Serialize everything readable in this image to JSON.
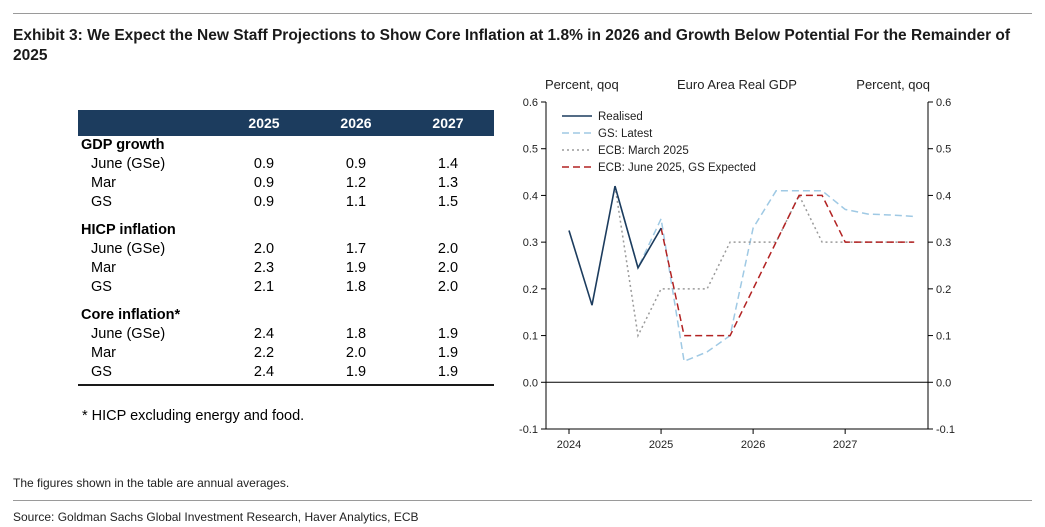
{
  "title": "Exhibit 3: We Expect the New Staff Projections to Show Core Inflation at 1.8% in 2026 and Growth Below Potential For the Remainder of 2025",
  "table": {
    "columns": [
      "2025",
      "2026",
      "2027"
    ],
    "sections": [
      {
        "label": "GDP growth",
        "rows": [
          {
            "label": "June (GSe)",
            "values": [
              "0.9",
              "0.9",
              "1.4"
            ]
          },
          {
            "label": "Mar",
            "values": [
              "0.9",
              "1.2",
              "1.3"
            ]
          },
          {
            "label": "GS",
            "values": [
              "0.9",
              "1.1",
              "1.5"
            ]
          }
        ]
      },
      {
        "label": "HICP inflation",
        "rows": [
          {
            "label": "June (GSe)",
            "values": [
              "2.0",
              "1.7",
              "2.0"
            ]
          },
          {
            "label": "Mar",
            "values": [
              "2.3",
              "1.9",
              "2.0"
            ]
          },
          {
            "label": "GS",
            "values": [
              "2.1",
              "1.8",
              "2.0"
            ]
          }
        ]
      },
      {
        "label": "Core inflation*",
        "rows": [
          {
            "label": "June (GSe)",
            "values": [
              "2.4",
              "1.8",
              "1.9"
            ]
          },
          {
            "label": "Mar",
            "values": [
              "2.2",
              "2.0",
              "1.9"
            ]
          },
          {
            "label": "GS",
            "values": [
              "2.4",
              "1.9",
              "1.9"
            ]
          }
        ]
      }
    ],
    "footnote": "* HICP excluding energy and food."
  },
  "note": "The figures shown in the table are annual averages.",
  "source": "Source: Goldman Sachs Global Investment Research, Haver Analytics, ECB",
  "chart_data": {
    "type": "line",
    "title": "Euro Area Real GDP",
    "ylabel_left": "Percent, qoq",
    "ylabel_right": "Percent, qoq",
    "ylim": [
      -0.1,
      0.6
    ],
    "yticks": [
      "-0.1",
      "0.0",
      "0.1",
      "0.2",
      "0.3",
      "0.4",
      "0.5",
      "0.6"
    ],
    "xlim": [
      2023.75,
      2027.9
    ],
    "xticks": [
      "2024",
      "2025",
      "2026",
      "2027"
    ],
    "grid": false,
    "legend_position": "top-left",
    "series": [
      {
        "name": "Realised",
        "style": "solid",
        "color": "#1c3c5e",
        "x": [
          2024.0,
          2024.25,
          2024.5,
          2024.75,
          2025.0
        ],
        "y": [
          0.325,
          0.165,
          0.42,
          0.245,
          0.33
        ]
      },
      {
        "name": "GS: Latest",
        "style": "dashed",
        "color": "#9fc9e4",
        "x": [
          2024.5,
          2024.75,
          2025.0,
          2025.25,
          2025.5,
          2025.75,
          2026.0,
          2026.25,
          2026.5,
          2026.75,
          2027.0,
          2027.25,
          2027.5,
          2027.75
        ],
        "y": [
          0.42,
          0.245,
          0.35,
          0.045,
          0.065,
          0.1,
          0.33,
          0.41,
          0.41,
          0.41,
          0.37,
          0.36,
          0.358,
          0.355
        ]
      },
      {
        "name": "ECB: March 2025",
        "style": "dotted",
        "color": "#9a9a9a",
        "x": [
          2024.5,
          2024.75,
          2025.0,
          2025.25,
          2025.5,
          2025.75,
          2026.0,
          2026.25,
          2026.5,
          2026.75,
          2027.0,
          2027.25,
          2027.5,
          2027.75
        ],
        "y": [
          0.42,
          0.1,
          0.2,
          0.2,
          0.2,
          0.3,
          0.3,
          0.3,
          0.4,
          0.3,
          0.3,
          0.3,
          0.3,
          0.3
        ]
      },
      {
        "name": "ECB: June 2025, GS Expected",
        "style": "dashed",
        "color": "#b22222",
        "x": [
          2025.0,
          2025.25,
          2025.5,
          2025.75,
          2026.0,
          2026.25,
          2026.5,
          2026.75,
          2027.0,
          2027.25,
          2027.5,
          2027.75
        ],
        "y": [
          0.33,
          0.1,
          0.1,
          0.1,
          0.2,
          0.3,
          0.4,
          0.4,
          0.3,
          0.3,
          0.3,
          0.3
        ]
      }
    ]
  }
}
